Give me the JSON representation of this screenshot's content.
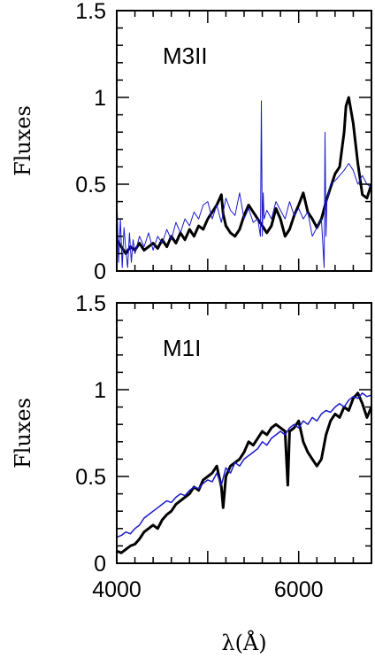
{
  "chart_data": [
    {
      "type": "line",
      "label": "M3II",
      "ylabel": "Fluxes",
      "xlim": [
        4000,
        6800
      ],
      "ylim": [
        0,
        1.5
      ],
      "x_ticks": [],
      "y_ticks": [
        {
          "value": 0,
          "label": "0"
        },
        {
          "value": 0.5,
          "label": "0.5"
        },
        {
          "value": 1,
          "label": "1"
        },
        {
          "value": 1.5,
          "label": "1.5"
        }
      ],
      "series": [
        {
          "color": "#000000",
          "width": 3,
          "x": [
            4000,
            4050,
            4100,
            4150,
            4200,
            4250,
            4300,
            4350,
            4400,
            4450,
            4500,
            4550,
            4600,
            4650,
            4700,
            4750,
            4800,
            4850,
            4900,
            4950,
            5000,
            5050,
            5100,
            5150,
            5170,
            5200,
            5250,
            5300,
            5350,
            5400,
            5450,
            5500,
            5550,
            5600,
            5650,
            5700,
            5750,
            5800,
            5850,
            5900,
            5950,
            6000,
            6050,
            6100,
            6150,
            6200,
            6250,
            6300,
            6350,
            6400,
            6450,
            6500,
            6520,
            6550,
            6600,
            6650,
            6700,
            6750,
            6800
          ],
          "y": [
            0.18,
            0.14,
            0.1,
            0.14,
            0.12,
            0.16,
            0.12,
            0.14,
            0.16,
            0.13,
            0.18,
            0.14,
            0.2,
            0.16,
            0.22,
            0.18,
            0.24,
            0.2,
            0.26,
            0.24,
            0.3,
            0.34,
            0.38,
            0.44,
            0.33,
            0.26,
            0.22,
            0.2,
            0.24,
            0.32,
            0.38,
            0.34,
            0.3,
            0.26,
            0.22,
            0.26,
            0.36,
            0.3,
            0.2,
            0.24,
            0.32,
            0.38,
            0.45,
            0.34,
            0.3,
            0.25,
            0.3,
            0.4,
            0.48,
            0.56,
            0.6,
            0.8,
            0.95,
            1.0,
            0.85,
            0.62,
            0.44,
            0.42,
            0.5
          ]
        },
        {
          "color": "#1a1acc",
          "width": 1,
          "x": [
            4000,
            4020,
            4040,
            4060,
            4080,
            4100,
            4120,
            4140,
            4160,
            4180,
            4200,
            4250,
            4300,
            4350,
            4400,
            4450,
            4500,
            4550,
            4600,
            4650,
            4700,
            4750,
            4800,
            4850,
            4900,
            4950,
            5000,
            5050,
            5100,
            5150,
            5200,
            5250,
            5300,
            5350,
            5400,
            5450,
            5500,
            5550,
            5580,
            5590,
            5600,
            5610,
            5620,
            5650,
            5700,
            5750,
            5800,
            5850,
            5900,
            5950,
            6000,
            6050,
            6100,
            6150,
            6200,
            6250,
            6280,
            6290,
            6300,
            6310,
            6330,
            6350,
            6400,
            6450,
            6500,
            6550,
            6600,
            6650,
            6700,
            6750,
            6800
          ],
          "y": [
            0.45,
            0.05,
            0.3,
            0.02,
            0.25,
            0.12,
            0.02,
            0.22,
            0.05,
            0.18,
            0.1,
            0.2,
            0.14,
            0.22,
            0.12,
            0.2,
            0.16,
            0.24,
            0.18,
            0.28,
            0.22,
            0.3,
            0.26,
            0.34,
            0.3,
            0.38,
            0.4,
            0.3,
            0.38,
            0.28,
            0.42,
            0.35,
            0.32,
            0.45,
            0.3,
            0.36,
            0.28,
            0.3,
            0.2,
            0.98,
            0.2,
            0.45,
            0.3,
            0.35,
            0.3,
            0.4,
            0.35,
            0.3,
            0.4,
            0.32,
            0.36,
            0.3,
            0.34,
            0.2,
            0.25,
            0.3,
            0.02,
            0.8,
            0.2,
            0.4,
            0.45,
            0.5,
            0.52,
            0.55,
            0.58,
            0.62,
            0.58,
            0.5,
            0.55,
            0.5,
            0.48
          ]
        }
      ]
    },
    {
      "type": "line",
      "label": "M1I",
      "ylabel": "Fluxes",
      "xlabel": "λ(Å)",
      "xlim": [
        4000,
        6800
      ],
      "ylim": [
        0,
        1.5
      ],
      "x_ticks": [
        {
          "value": 4000,
          "label": "4000"
        },
        {
          "value": 6000,
          "label": "6000"
        }
      ],
      "y_ticks": [
        {
          "value": 0,
          "label": "0"
        },
        {
          "value": 0.5,
          "label": "0.5"
        },
        {
          "value": 1,
          "label": "1"
        },
        {
          "value": 1.5,
          "label": "1.5"
        }
      ],
      "series": [
        {
          "color": "#000000",
          "width": 3,
          "x": [
            4000,
            4050,
            4100,
            4150,
            4200,
            4250,
            4300,
            4350,
            4400,
            4450,
            4500,
            4550,
            4600,
            4650,
            4700,
            4750,
            4800,
            4850,
            4900,
            4950,
            5000,
            5050,
            5100,
            5150,
            5170,
            5200,
            5250,
            5300,
            5350,
            5400,
            5450,
            5500,
            5550,
            5600,
            5650,
            5700,
            5750,
            5800,
            5850,
            5880,
            5900,
            5950,
            6000,
            6050,
            6100,
            6150,
            6200,
            6250,
            6300,
            6350,
            6400,
            6450,
            6500,
            6550,
            6600,
            6650,
            6700,
            6750,
            6800
          ],
          "y": [
            0.07,
            0.06,
            0.08,
            0.1,
            0.11,
            0.14,
            0.18,
            0.2,
            0.22,
            0.2,
            0.25,
            0.28,
            0.3,
            0.34,
            0.36,
            0.38,
            0.4,
            0.44,
            0.42,
            0.48,
            0.5,
            0.52,
            0.56,
            0.44,
            0.32,
            0.5,
            0.56,
            0.58,
            0.6,
            0.64,
            0.7,
            0.68,
            0.72,
            0.76,
            0.74,
            0.78,
            0.8,
            0.78,
            0.76,
            0.45,
            0.76,
            0.78,
            0.82,
            0.7,
            0.64,
            0.6,
            0.56,
            0.6,
            0.74,
            0.82,
            0.86,
            0.84,
            0.9,
            0.88,
            0.95,
            0.98,
            0.92,
            0.84,
            0.9
          ]
        },
        {
          "color": "#1a1acc",
          "width": 1.5,
          "x": [
            4000,
            4050,
            4100,
            4150,
            4200,
            4250,
            4300,
            4350,
            4400,
            4450,
            4500,
            4550,
            4600,
            4650,
            4700,
            4750,
            4800,
            4850,
            4900,
            4950,
            5000,
            5050,
            5100,
            5150,
            5200,
            5250,
            5300,
            5350,
            5400,
            5450,
            5500,
            5550,
            5600,
            5650,
            5700,
            5750,
            5800,
            5850,
            5900,
            5950,
            6000,
            6050,
            6100,
            6150,
            6200,
            6250,
            6300,
            6350,
            6400,
            6450,
            6500,
            6550,
            6600,
            6650,
            6700,
            6750,
            6800
          ],
          "y": [
            0.15,
            0.16,
            0.18,
            0.17,
            0.2,
            0.22,
            0.26,
            0.28,
            0.3,
            0.32,
            0.34,
            0.36,
            0.35,
            0.38,
            0.4,
            0.39,
            0.42,
            0.44,
            0.43,
            0.46,
            0.48,
            0.47,
            0.52,
            0.45,
            0.55,
            0.52,
            0.58,
            0.56,
            0.6,
            0.62,
            0.64,
            0.66,
            0.7,
            0.68,
            0.72,
            0.74,
            0.76,
            0.74,
            0.78,
            0.8,
            0.78,
            0.82,
            0.8,
            0.84,
            0.82,
            0.86,
            0.88,
            0.87,
            0.9,
            0.92,
            0.9,
            0.94,
            0.96,
            0.95,
            0.98,
            0.96,
            0.97
          ]
        }
      ]
    }
  ]
}
